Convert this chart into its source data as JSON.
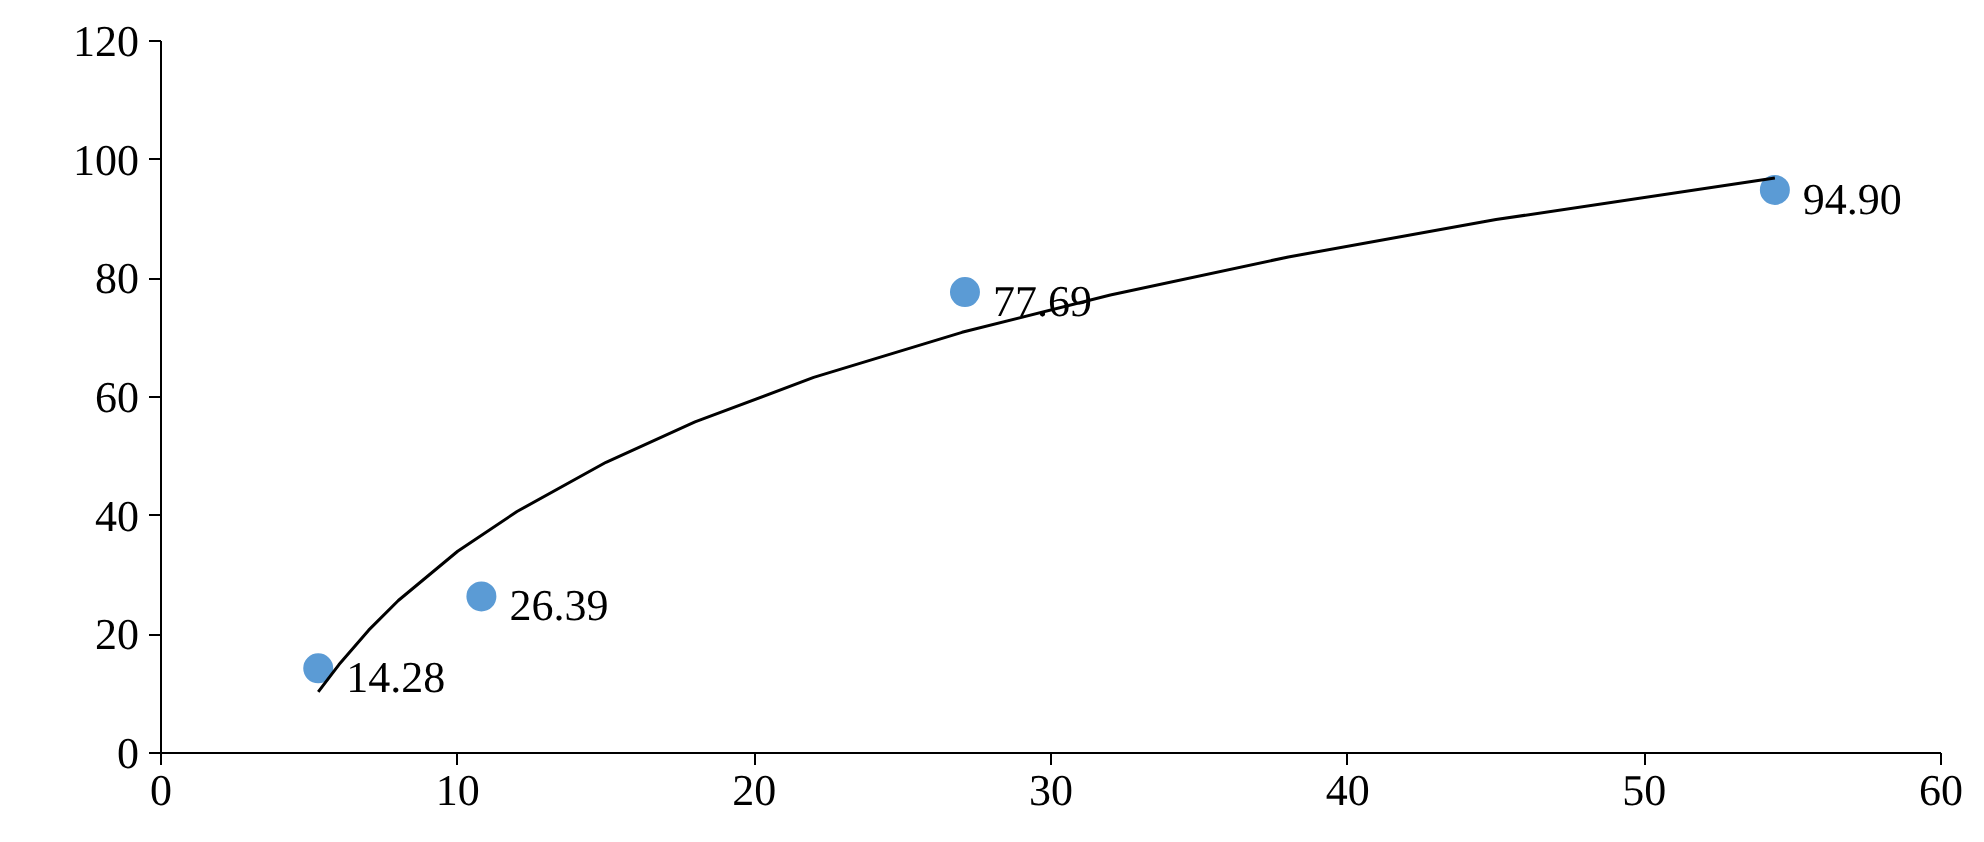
{
  "chart_data": {
    "type": "scatter",
    "xlim": [
      0,
      60
    ],
    "xticks": [
      0,
      10,
      20,
      30,
      40,
      50,
      60
    ],
    "ylim": [
      0,
      120
    ],
    "yticks": [
      0,
      20,
      40,
      60,
      80,
      100,
      120
    ],
    "series": [
      {
        "marker": "circle",
        "color": "#5b9bd5",
        "x": [
          5.3,
          10.8,
          27.1,
          54.4
        ],
        "values": [
          14.28,
          26.39,
          77.69,
          94.9
        ],
        "value_labels": [
          "14.28",
          "26.39",
          "77.69",
          "94.90"
        ]
      },
      {
        "type": "line",
        "marker": "none",
        "color": "#000000",
        "x": [
          5.3,
          6,
          7,
          8,
          10,
          12,
          15,
          18,
          22,
          27,
          32,
          38,
          45,
          54.4
        ],
        "values": [
          10.3,
          14.9,
          20.7,
          25.7,
          34.0,
          40.7,
          49.0,
          55.8,
          63.3,
          70.9,
          77.2,
          83.6,
          89.9,
          96.9
        ]
      }
    ]
  }
}
